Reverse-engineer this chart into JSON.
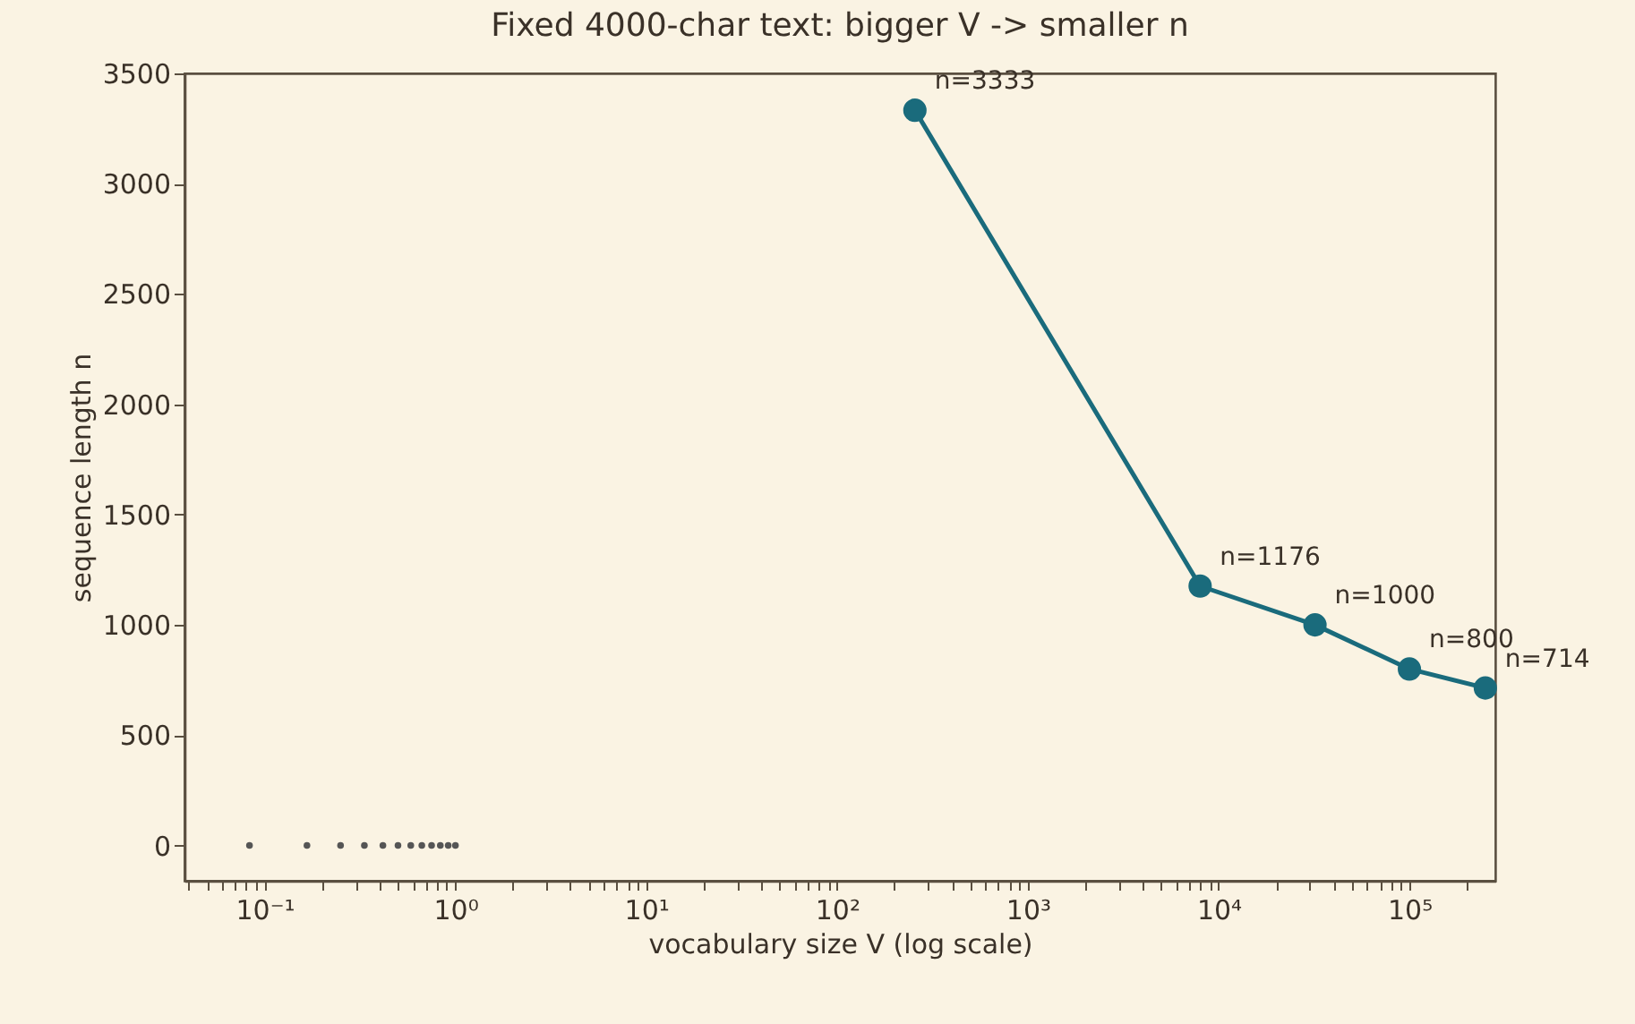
{
  "chart_data": {
    "type": "line",
    "title": "Fixed 4000-char text: bigger V -> smaller n",
    "xlabel": "vocabulary size  V  (log scale)",
    "ylabel": "sequence length  n",
    "log": "x",
    "xlim": [
      0.038,
      282000
    ],
    "ylim": [
      -160,
      3500
    ],
    "xticks": [
      {
        "value": 0.04,
        "label": null
      },
      {
        "value": 0.05,
        "label": null
      },
      {
        "value": 0.06,
        "label": null
      },
      {
        "value": 0.07,
        "label": null
      },
      {
        "value": 0.08,
        "label": null
      },
      {
        "value": 0.09,
        "label": null
      },
      {
        "value": 0.1,
        "label": "10⁻¹"
      },
      {
        "value": 0.2,
        "label": null
      },
      {
        "value": 0.3,
        "label": null
      },
      {
        "value": 0.4,
        "label": null
      },
      {
        "value": 0.5,
        "label": null
      },
      {
        "value": 0.6,
        "label": null
      },
      {
        "value": 0.7,
        "label": null
      },
      {
        "value": 0.8,
        "label": null
      },
      {
        "value": 0.9,
        "label": null
      },
      {
        "value": 1,
        "label": "10⁰"
      },
      {
        "value": 2,
        "label": null
      },
      {
        "value": 3,
        "label": null
      },
      {
        "value": 4,
        "label": null
      },
      {
        "value": 5,
        "label": null
      },
      {
        "value": 6,
        "label": null
      },
      {
        "value": 7,
        "label": null
      },
      {
        "value": 8,
        "label": null
      },
      {
        "value": 9,
        "label": null
      },
      {
        "value": 10,
        "label": "10¹"
      },
      {
        "value": 20,
        "label": null
      },
      {
        "value": 30,
        "label": null
      },
      {
        "value": 40,
        "label": null
      },
      {
        "value": 50,
        "label": null
      },
      {
        "value": 60,
        "label": null
      },
      {
        "value": 70,
        "label": null
      },
      {
        "value": 80,
        "label": null
      },
      {
        "value": 90,
        "label": null
      },
      {
        "value": 100,
        "label": "10²"
      },
      {
        "value": 200,
        "label": null
      },
      {
        "value": 300,
        "label": null
      },
      {
        "value": 400,
        "label": null
      },
      {
        "value": 500,
        "label": null
      },
      {
        "value": 600,
        "label": null
      },
      {
        "value": 700,
        "label": null
      },
      {
        "value": 800,
        "label": null
      },
      {
        "value": 900,
        "label": null
      },
      {
        "value": 1000,
        "label": "10³"
      },
      {
        "value": 2000,
        "label": null
      },
      {
        "value": 3000,
        "label": null
      },
      {
        "value": 4000,
        "label": null
      },
      {
        "value": 5000,
        "label": null
      },
      {
        "value": 6000,
        "label": null
      },
      {
        "value": 7000,
        "label": null
      },
      {
        "value": 8000,
        "label": null
      },
      {
        "value": 9000,
        "label": null
      },
      {
        "value": 10000,
        "label": "10⁴"
      },
      {
        "value": 20000,
        "label": null
      },
      {
        "value": 30000,
        "label": null
      },
      {
        "value": 40000,
        "label": null
      },
      {
        "value": 50000,
        "label": null
      },
      {
        "value": 60000,
        "label": null
      },
      {
        "value": 70000,
        "label": null
      },
      {
        "value": 80000,
        "label": null
      },
      {
        "value": 90000,
        "label": null
      },
      {
        "value": 100000,
        "label": "10⁵"
      },
      {
        "value": 200000,
        "label": null
      }
    ],
    "yticks": [
      0,
      500,
      1000,
      1500,
      2000,
      2500,
      3000,
      3500
    ],
    "series": [
      {
        "color": "#1a6b7c",
        "marker": "circle",
        "x": [
          256,
          8000,
          32000,
          100000,
          250000
        ],
        "values": [
          3333,
          1176,
          1000,
          800,
          714
        ],
        "value_labels": [
          "n=3333",
          "n=1176",
          "n=1000",
          "n=800",
          "n=714"
        ]
      },
      {
        "type": "scatter",
        "color": "#555555",
        "marker": "circle",
        "x": [
          0.0833,
          0.1667,
          0.25,
          0.3333,
          0.4167,
          0.5,
          0.5833,
          0.6667,
          0.75,
          0.8333,
          0.9167,
          1
        ],
        "values": [
          0,
          0,
          0,
          0,
          0,
          0,
          0,
          0,
          0,
          0,
          0,
          0
        ]
      }
    ]
  }
}
